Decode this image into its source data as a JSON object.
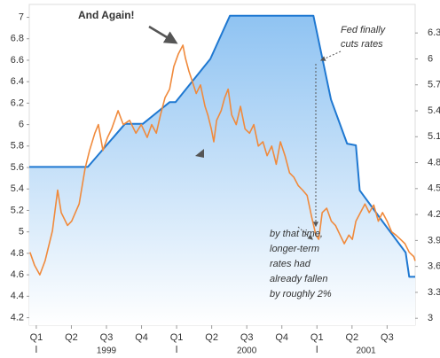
{
  "chart_data": {
    "type": "line",
    "xlim": [
      -0.2,
      10.8
    ],
    "xticks": [
      {
        "value": 0,
        "label": "Q1"
      },
      {
        "value": 1,
        "label": "Q2"
      },
      {
        "value": 2,
        "label": "Q3"
      },
      {
        "value": 3,
        "label": "Q4"
      },
      {
        "value": 4,
        "label": "Q1"
      },
      {
        "value": 5,
        "label": "Q2"
      },
      {
        "value": 6,
        "label": "Q3"
      },
      {
        "value": 7,
        "label": "Q4"
      },
      {
        "value": 8,
        "label": "Q1"
      },
      {
        "value": 9,
        "label": "Q2"
      },
      {
        "value": 10,
        "label": "Q3"
      }
    ],
    "x_groups": [
      {
        "label": "1999",
        "from": 0
      },
      {
        "label": "2000",
        "from": 4
      },
      {
        "label": "2001",
        "from": 8
      }
    ],
    "ylim": [
      4.13,
      7.12
    ],
    "yticks": [
      4.2,
      4.4,
      4.6,
      4.8,
      5,
      5.2,
      5.4,
      5.6,
      5.8,
      6,
      6.2,
      6.4,
      6.6,
      6.8,
      7
    ],
    "y2lim": [
      2.92,
      6.63
    ],
    "y2ticks": [
      3,
      3.3,
      3.6,
      3.9,
      4.2,
      4.5,
      4.8,
      5.1,
      5.4,
      5.7,
      6,
      6.3
    ],
    "grid": false,
    "series": [
      {
        "axis": "y2",
        "color": "#1f78d1",
        "fill": "#a8d2f7",
        "x": [
          -0.2,
          1.47,
          2.53,
          3.04,
          3.8,
          3.97,
          4.96,
          5.52,
          7.9,
          8.4,
          8.86,
          9.11,
          9.22,
          9.87,
          10.53,
          10.63,
          10.8
        ],
        "values": [
          4.75,
          4.75,
          5.25,
          5.25,
          5.5,
          5.5,
          6.0,
          6.5,
          6.5,
          5.53,
          5.02,
          5.0,
          4.48,
          4.12,
          3.76,
          3.48,
          3.48
        ]
      },
      {
        "axis": "y",
        "color": "#f08a3c",
        "x": [
          -0.18,
          -0.05,
          0.1,
          0.25,
          0.46,
          0.61,
          0.71,
          0.89,
          1.01,
          1.22,
          1.39,
          1.52,
          1.67,
          1.77,
          1.9,
          2.03,
          2.15,
          2.33,
          2.48,
          2.66,
          2.84,
          2.99,
          3.16,
          3.29,
          3.42,
          3.54,
          3.67,
          3.8,
          3.92,
          4.05,
          4.18,
          4.25,
          4.35,
          4.43,
          4.56,
          4.68,
          4.81,
          4.89,
          4.99,
          5.06,
          5.14,
          5.27,
          5.37,
          5.47,
          5.57,
          5.7,
          5.82,
          5.95,
          6.08,
          6.2,
          6.33,
          6.46,
          6.58,
          6.71,
          6.84,
          6.96,
          7.09,
          7.22,
          7.34,
          7.47,
          7.59,
          7.72,
          7.85,
          7.97,
          8.05,
          8.15,
          8.28,
          8.41,
          8.53,
          8.66,
          8.78,
          8.91,
          9.01,
          9.11,
          9.24,
          9.37,
          9.49,
          9.62,
          9.75,
          9.87,
          10.0,
          10.13,
          10.25,
          10.38,
          10.51,
          10.63,
          10.76,
          10.8
        ],
        "values": [
          4.81,
          4.69,
          4.6,
          4.73,
          5.01,
          5.39,
          5.18,
          5.06,
          5.1,
          5.26,
          5.59,
          5.76,
          5.92,
          6.0,
          5.76,
          5.88,
          5.96,
          6.13,
          6.0,
          6.04,
          5.92,
          6.0,
          5.88,
          6.0,
          5.92,
          6.09,
          6.25,
          6.33,
          6.54,
          6.66,
          6.74,
          6.62,
          6.5,
          6.42,
          6.29,
          6.37,
          6.17,
          6.09,
          5.96,
          5.84,
          6.04,
          6.13,
          6.25,
          6.33,
          6.09,
          6.0,
          6.17,
          5.96,
          5.92,
          6.0,
          5.8,
          5.84,
          5.71,
          5.8,
          5.63,
          5.84,
          5.71,
          5.55,
          5.51,
          5.43,
          5.39,
          5.34,
          5.14,
          4.97,
          4.93,
          5.18,
          5.22,
          5.1,
          5.06,
          4.97,
          4.89,
          4.97,
          4.93,
          5.1,
          5.18,
          5.26,
          5.18,
          5.25,
          5.1,
          5.18,
          5.1,
          5.0,
          4.97,
          4.93,
          4.89,
          4.81,
          4.77,
          4.73
        ]
      }
    ],
    "annotations": [
      {
        "lines": [
          "And Again!"
        ]
      },
      {
        "lines": [
          "Fed finally",
          "cuts rates"
        ]
      },
      {
        "lines": [
          "by that time,",
          "longer-term",
          "rates had",
          "already fallen",
          "by roughly 2%"
        ]
      }
    ]
  }
}
